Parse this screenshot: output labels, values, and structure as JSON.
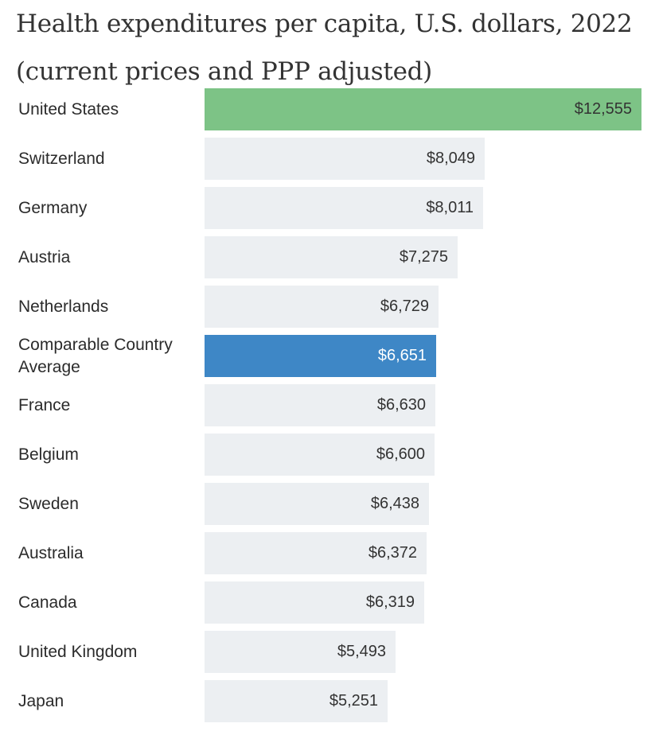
{
  "title": "Health expenditures per capita, U.S. dollars, 2022 (current prices and PPP adjusted)",
  "colors": {
    "us": "#7dc386",
    "comparable_average": "#3e87c6",
    "default": "#eceff2",
    "label_text": "#2b2b2b",
    "value_text": "#333333"
  },
  "chart_data": {
    "type": "bar",
    "orientation": "horizontal",
    "title": "Health expenditures per capita, U.S. dollars, 2022 (current prices and PPP adjusted)",
    "xlim": [
      0,
      12555
    ],
    "categories": [
      "United States",
      "Switzerland",
      "Germany",
      "Austria",
      "Netherlands",
      "Comparable Country Average",
      "France",
      "Belgium",
      "Sweden",
      "Australia",
      "Canada",
      "United Kingdom",
      "Japan"
    ],
    "values": [
      12555,
      8049,
      8011,
      7275,
      6729,
      6651,
      6630,
      6600,
      6438,
      6372,
      6319,
      5493,
      5251
    ],
    "value_labels": [
      "$12,555",
      "$8,049",
      "$8,011",
      "$7,275",
      "$6,729",
      "$6,651",
      "$6,630",
      "$6,600",
      "$6,438",
      "$6,372",
      "$6,319",
      "$5,493",
      "$5,251"
    ],
    "highlight": {
      "United States": "us",
      "Comparable Country Average": "comparable_average"
    }
  }
}
